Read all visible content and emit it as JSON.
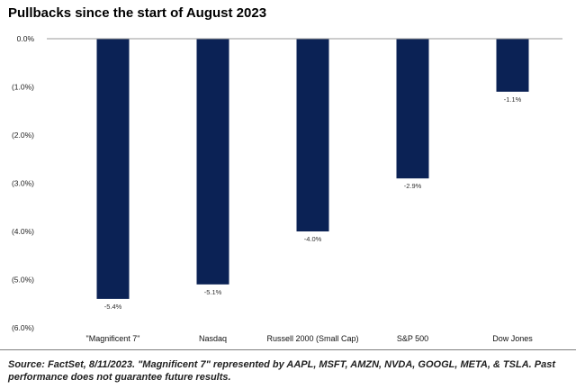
{
  "chart_data": {
    "type": "bar",
    "title": "Pullbacks since the start of August 2023",
    "categories": [
      "\"Magnificent 7\"",
      "Nasdaq",
      "Russell 2000 (Small Cap)",
      "S&P 500",
      "Dow Jones"
    ],
    "values": [
      -5.4,
      -5.1,
      -4.0,
      -2.9,
      -1.1
    ],
    "data_labels": [
      "-5.4%",
      "-5.1%",
      "-4.0%",
      "-2.9%",
      "-1.1%"
    ],
    "ylim": [
      -6.0,
      0.0
    ],
    "y_ticks": [
      0,
      -1,
      -2,
      -3,
      -4,
      -5,
      -6
    ],
    "y_tick_labels": [
      "0.0%",
      "(1.0%)",
      "(2.0%)",
      "(3.0%)",
      "(4.0%)",
      "(5.0%)",
      "(6.0%)"
    ],
    "bar_color": "#0b2255",
    "grid": false,
    "legend": "none"
  },
  "footer": {
    "source": "Source: FactSet, 8/11/2023. \"Magnificent 7\" represented by AAPL, MSFT, AMZN, NVDA, GOOGL, META, & TSLA. Past performance does not guarantee future results."
  }
}
